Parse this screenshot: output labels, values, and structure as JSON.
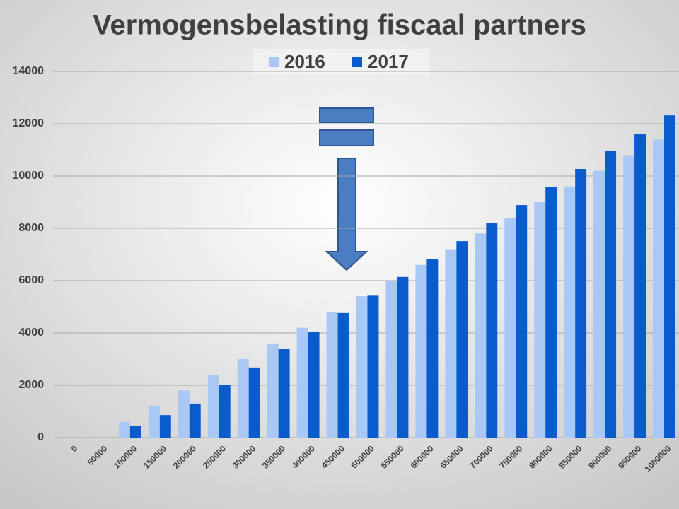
{
  "chart_data": {
    "type": "bar",
    "title": "Vermogensbelasting fiscaal partners",
    "categories": [
      "0",
      "50000",
      "100000",
      "150000",
      "200000",
      "250000",
      "300000",
      "350000",
      "400000",
      "450000",
      "500000",
      "550000",
      "600000",
      "650000",
      "700000",
      "750000",
      "800000",
      "850000",
      "900000",
      "950000",
      "1000000"
    ],
    "series": [
      {
        "name": "2016",
        "color": "#a9c8f5",
        "values": [
          0,
          0,
          600,
          1200,
          1800,
          2400,
          3000,
          3600,
          4200,
          4800,
          5400,
          6000,
          6600,
          7200,
          7800,
          8400,
          9000,
          9600,
          10200,
          10800,
          11400
        ]
      },
      {
        "name": "2017",
        "color": "#0a5ccc",
        "values": [
          0,
          0,
          460,
          860,
          1300,
          2000,
          2680,
          3380,
          4050,
          4760,
          5450,
          6140,
          6810,
          7510,
          8190,
          8890,
          9570,
          10270,
          10950,
          11620,
          12320
        ]
      }
    ],
    "ylim": [
      0,
      14000
    ],
    "yticks": [
      0,
      2000,
      4000,
      6000,
      8000,
      10000,
      12000,
      14000
    ],
    "grid": true,
    "legend": "top"
  }
}
